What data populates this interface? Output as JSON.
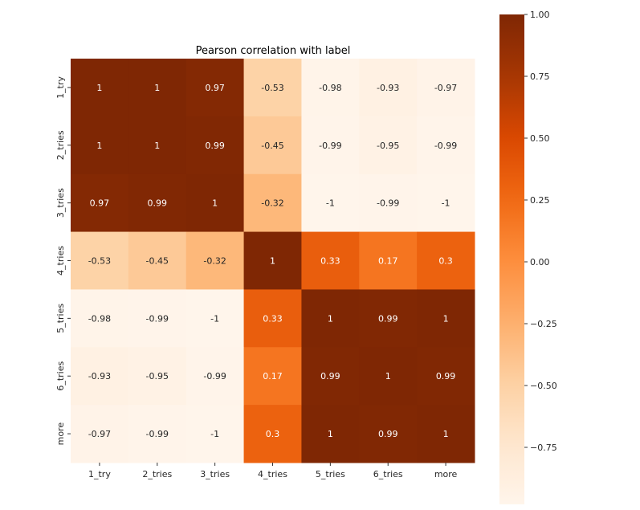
{
  "chart_data": {
    "type": "heatmap",
    "title": "Pearson correlation with label",
    "x_labels": [
      "1_try",
      "2_tries",
      "3_tries",
      "4_tries",
      "5_tries",
      "6_tries",
      "more"
    ],
    "y_labels": [
      "1_try",
      "2_tries",
      "3_tries",
      "4_tries",
      "5_tries",
      "6_tries",
      "more"
    ],
    "values": [
      [
        1,
        1,
        0.97,
        -0.53,
        -0.98,
        -0.93,
        -0.97
      ],
      [
        1,
        1,
        0.99,
        -0.45,
        -0.99,
        -0.95,
        -0.99
      ],
      [
        0.97,
        0.99,
        1,
        -0.32,
        -1,
        -0.99,
        -1
      ],
      [
        -0.53,
        -0.45,
        -0.32,
        1,
        0.33,
        0.17,
        0.3
      ],
      [
        -0.98,
        -0.99,
        -1,
        0.33,
        1,
        0.99,
        1
      ],
      [
        -0.93,
        -0.95,
        -0.99,
        0.17,
        0.99,
        1,
        0.99
      ],
      [
        -0.97,
        -0.99,
        -1,
        0.3,
        1,
        0.99,
        1
      ]
    ],
    "colormap": "Oranges",
    "color_stops": [
      "#fff5eb",
      "#fee6ce",
      "#fdd0a2",
      "#fdae6b",
      "#fd8d3c",
      "#f16913",
      "#d94801",
      "#a63603",
      "#7f2704"
    ],
    "vmin": -1,
    "vmax": 1,
    "colorbar_ticks": [
      1.0,
      0.75,
      0.5,
      0.25,
      0.0,
      -0.25,
      -0.5,
      -0.75
    ],
    "colorbar_tick_labels": [
      "1.00",
      "0.75",
      "0.50",
      "0.25",
      "0.00",
      "−0.25",
      "−0.50",
      "−0.75"
    ],
    "xlabel": "",
    "ylabel": ""
  }
}
